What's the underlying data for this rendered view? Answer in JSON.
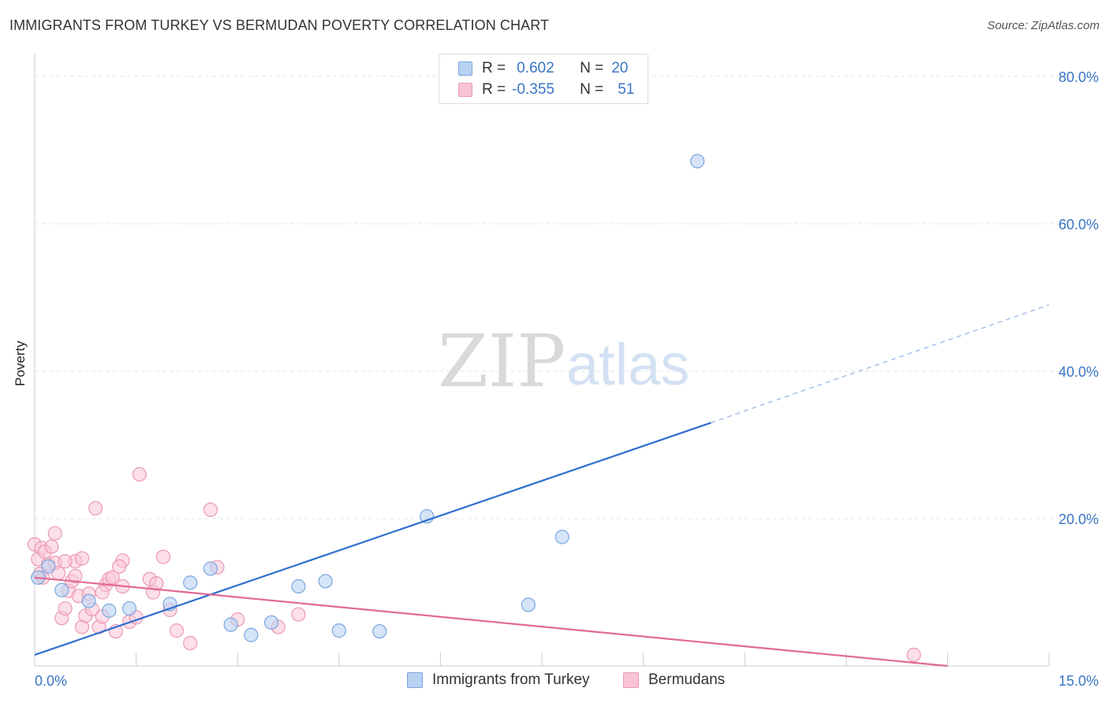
{
  "header": {
    "title": "IMMIGRANTS FROM TURKEY VS BERMUDAN POVERTY CORRELATION CHART",
    "source": "Source: ZipAtlas.com"
  },
  "watermark": {
    "zip": "ZIP",
    "atlas": "atlas"
  },
  "colors": {
    "blue": "#3a75c4",
    "blue_fill": "#b9d2f2",
    "blue_line": "#2f6fcf",
    "pink": "#e06a97",
    "pink_fill": "#f9c4d5",
    "grid": "#e3e3e3"
  },
  "legend": {
    "rows": [
      {
        "r_label": "R =",
        "r_value": "0.602",
        "n_label": "N =",
        "n_value": "20"
      },
      {
        "r_label": "R =",
        "r_value": "-0.355",
        "n_label": "N =",
        "n_value": "51"
      }
    ]
  },
  "bottom_legend": {
    "series1": "Immigrants from Turkey",
    "series2": "Bermudans"
  },
  "chart_data": {
    "type": "scatter",
    "title": "IMMIGRANTS FROM TURKEY VS BERMUDAN POVERTY CORRELATION CHART",
    "xlabel": "",
    "ylabel": "Poverty",
    "xlim": [
      0,
      15
    ],
    "ylim": [
      0,
      80
    ],
    "x_tick_labels": [
      "0.0%",
      "15.0%"
    ],
    "y_ticks": [
      20,
      40,
      60,
      80
    ],
    "y_tick_labels": [
      "20.0%",
      "40.0%",
      "60.0%",
      "80.0%"
    ],
    "grid": true,
    "series": [
      {
        "name": "Immigrants from Turkey",
        "color": "#b9d2f2",
        "points": [
          [
            0.05,
            12.0
          ],
          [
            0.2,
            13.5
          ],
          [
            0.4,
            10.3
          ],
          [
            0.8,
            8.8
          ],
          [
            1.1,
            7.5
          ],
          [
            1.4,
            7.8
          ],
          [
            2.0,
            8.4
          ],
          [
            2.3,
            11.3
          ],
          [
            2.6,
            13.2
          ],
          [
            2.9,
            5.6
          ],
          [
            3.2,
            4.2
          ],
          [
            3.5,
            5.9
          ],
          [
            3.9,
            10.8
          ],
          [
            4.3,
            11.5
          ],
          [
            4.5,
            4.8
          ],
          [
            5.1,
            4.7
          ],
          [
            5.8,
            20.3
          ],
          [
            7.3,
            8.3
          ],
          [
            7.8,
            17.5
          ],
          [
            9.8,
            68.5
          ]
        ],
        "trend": {
          "x0": 0,
          "y0": 1.5,
          "x1": 10.0,
          "y1": 33.0,
          "dashed_to_x": 15.0,
          "dashed_to_y": 49.0
        }
      },
      {
        "name": "Bermudans",
        "color": "#f9c4d5",
        "points": [
          [
            0.0,
            16.5
          ],
          [
            0.05,
            14.5
          ],
          [
            0.08,
            12.5
          ],
          [
            0.1,
            16.0
          ],
          [
            0.12,
            12.0
          ],
          [
            0.15,
            15.5
          ],
          [
            0.2,
            13.8
          ],
          [
            0.25,
            16.2
          ],
          [
            0.3,
            14.0
          ],
          [
            0.35,
            12.6
          ],
          [
            0.4,
            6.5
          ],
          [
            0.45,
            7.8
          ],
          [
            0.5,
            10.2
          ],
          [
            0.55,
            11.5
          ],
          [
            0.6,
            14.2
          ],
          [
            0.6,
            12.2
          ],
          [
            0.65,
            9.5
          ],
          [
            0.7,
            14.6
          ],
          [
            0.7,
            5.3
          ],
          [
            0.75,
            6.8
          ],
          [
            0.8,
            9.8
          ],
          [
            0.85,
            7.7
          ],
          [
            0.9,
            21.4
          ],
          [
            0.95,
            5.3
          ],
          [
            1.0,
            6.7
          ],
          [
            1.05,
            11.0
          ],
          [
            1.1,
            11.8
          ],
          [
            1.15,
            12.0
          ],
          [
            1.2,
            4.7
          ],
          [
            1.3,
            14.3
          ],
          [
            1.3,
            10.8
          ],
          [
            1.4,
            6.0
          ],
          [
            1.5,
            6.6
          ],
          [
            1.55,
            26.0
          ],
          [
            1.7,
            11.8
          ],
          [
            1.75,
            10.0
          ],
          [
            1.8,
            11.2
          ],
          [
            1.9,
            14.8
          ],
          [
            2.0,
            7.6
          ],
          [
            2.1,
            4.8
          ],
          [
            2.3,
            3.1
          ],
          [
            2.6,
            21.2
          ],
          [
            2.7,
            13.4
          ],
          [
            3.0,
            6.3
          ],
          [
            3.6,
            5.3
          ],
          [
            3.9,
            7.0
          ],
          [
            0.3,
            18.0
          ],
          [
            0.45,
            14.2
          ],
          [
            1.0,
            10.0
          ],
          [
            1.25,
            13.5
          ],
          [
            13.0,
            1.5
          ]
        ],
        "trend": {
          "x0": 0,
          "y0": 12.0,
          "x1": 13.5,
          "y1": 0.0
        }
      }
    ]
  }
}
